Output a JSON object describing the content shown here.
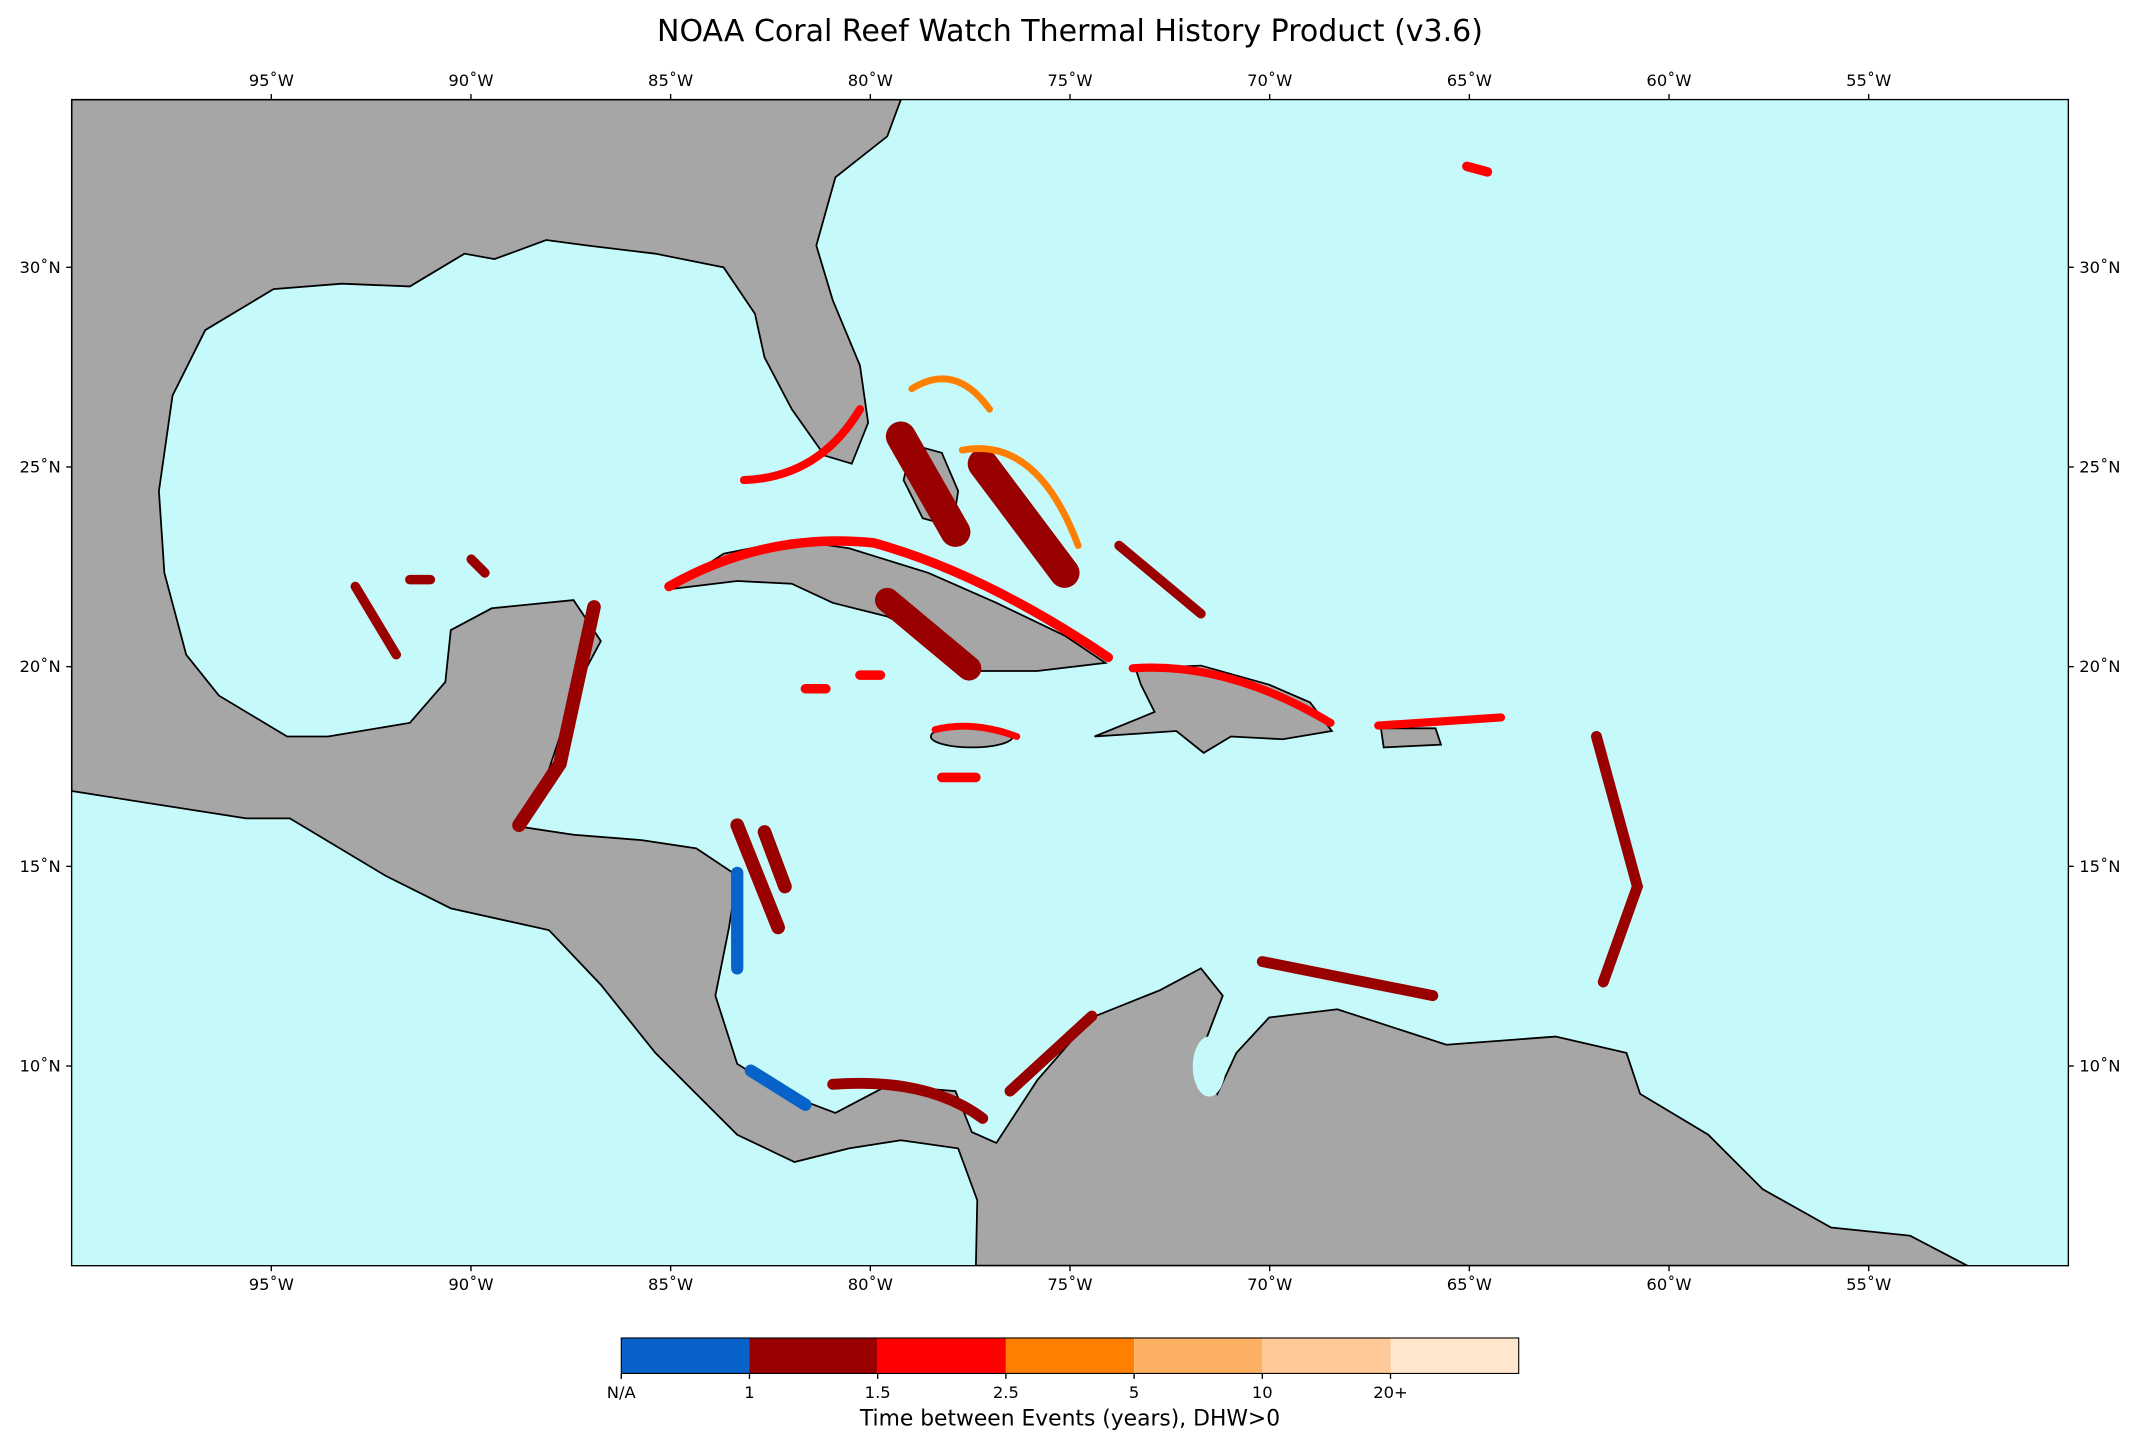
{
  "map": {
    "title": "NOAA Coral Reef Watch Thermal History Product (v3.6)",
    "lon_range": [
      -100,
      -50
    ],
    "lat_range": [
      5,
      34.2
    ],
    "lon_ticks": [
      {
        "value": -95,
        "label": "95˚W"
      },
      {
        "value": -90,
        "label": "90˚W"
      },
      {
        "value": -85,
        "label": "85˚W"
      },
      {
        "value": -80,
        "label": "80˚W"
      },
      {
        "value": -75,
        "label": "75˚W"
      },
      {
        "value": -70,
        "label": "70˚W"
      },
      {
        "value": -65,
        "label": "65˚W"
      },
      {
        "value": -60,
        "label": "60˚W"
      },
      {
        "value": -55,
        "label": "55˚W"
      }
    ],
    "lat_ticks": [
      {
        "value": 10,
        "label": "10˚N"
      },
      {
        "value": 15,
        "label": "15˚N"
      },
      {
        "value": 20,
        "label": "20˚N"
      },
      {
        "value": 25,
        "label": "25˚N"
      },
      {
        "value": 30,
        "label": "30˚N"
      }
    ],
    "ocean_color": "#c6f9f9",
    "land_color": "#a6a6a6",
    "colorbar": {
      "title": "Time between Events (years), DHW>0",
      "labels": [
        "N/A",
        "1",
        "1.5",
        "2.5",
        "5",
        "10",
        "20+"
      ],
      "colors": [
        "#0763c9",
        "#990000",
        "#ff0000",
        "#ff8000",
        "#fdb062",
        "#fec996",
        "#ffe6cc"
      ]
    }
  }
}
